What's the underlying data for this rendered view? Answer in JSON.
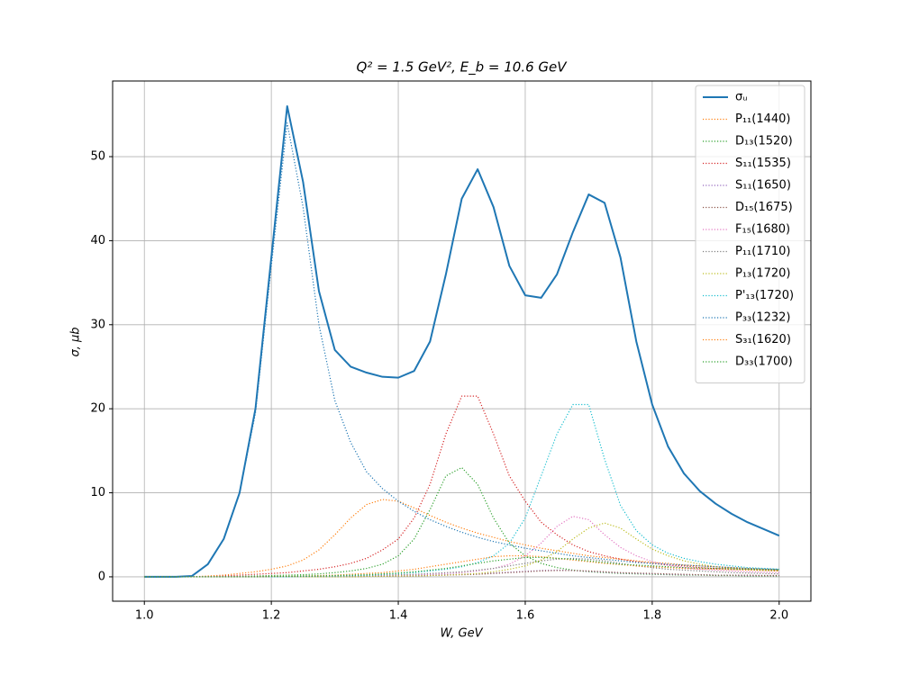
{
  "chart_data": {
    "type": "line",
    "title": "Q² = 1.5 GeV²,  E_b = 10.6 GeV",
    "x_label": "W, GeV",
    "y_label": "σ, μb",
    "xlim": [
      0.95,
      2.05
    ],
    "ylim": [
      -2.9,
      59
    ],
    "xticks": [
      {
        "value": 1.0,
        "label": "1.0"
      },
      {
        "value": 1.2,
        "label": "1.2"
      },
      {
        "value": 1.4,
        "label": "1.4"
      },
      {
        "value": 1.6,
        "label": "1.6"
      },
      {
        "value": 1.8,
        "label": "1.8"
      },
      {
        "value": 2.0,
        "label": "2.0"
      }
    ],
    "yticks": [
      0,
      10,
      20,
      30,
      40,
      50
    ],
    "grid": true,
    "legend": "upper right",
    "x": [
      1.0,
      1.025,
      1.05,
      1.075,
      1.1,
      1.125,
      1.15,
      1.175,
      1.2,
      1.225,
      1.25,
      1.275,
      1.3,
      1.325,
      1.35,
      1.375,
      1.4,
      1.425,
      1.45,
      1.475,
      1.5,
      1.525,
      1.55,
      1.575,
      1.6,
      1.625,
      1.65,
      1.675,
      1.7,
      1.725,
      1.75,
      1.775,
      1.8,
      1.825,
      1.85,
      1.875,
      1.9,
      1.925,
      1.95,
      1.975,
      2.0
    ],
    "series": [
      {
        "name": "σᵤ",
        "color": "#1f77b4",
        "style": "solid",
        "values": [
          0,
          0,
          0,
          0.1,
          1.5,
          4.5,
          10,
          20,
          38,
          56,
          47,
          34,
          27,
          25,
          24.3,
          23.8,
          23.7,
          24.5,
          28,
          36,
          45,
          48.5,
          44,
          37,
          33.5,
          33.2,
          36,
          41,
          45.5,
          44.5,
          38,
          28,
          20.5,
          15.5,
          12.3,
          10.2,
          8.7,
          7.5,
          6.5,
          5.7,
          4.9
        ]
      },
      {
        "name": "P₁₁(1440)",
        "color": "#ff7f0e",
        "style": "dotted",
        "values": [
          0,
          0,
          0,
          0,
          0.1,
          0.2,
          0.4,
          0.6,
          0.9,
          1.3,
          2,
          3.2,
          5,
          7,
          8.6,
          9.2,
          9,
          8.2,
          7.3,
          6.5,
          5.8,
          5.2,
          4.7,
          4.2,
          3.8,
          3.4,
          3.1,
          2.8,
          2.5,
          2.3,
          2.1,
          1.9,
          1.7,
          1.6,
          1.4,
          1.3,
          1.2,
          1.1,
          1.0,
          0.9,
          0.85
        ]
      },
      {
        "name": "D₁₃(1520)",
        "color": "#2ca02c",
        "style": "dotted",
        "values": [
          0,
          0,
          0,
          0,
          0,
          0,
          0.05,
          0.1,
          0.15,
          0.2,
          0.25,
          0.35,
          0.5,
          0.7,
          1,
          1.5,
          2.5,
          4.5,
          8,
          12,
          13,
          11,
          7,
          4,
          2.5,
          1.6,
          1.1,
          0.8,
          0.6,
          0.5,
          0.4,
          0.35,
          0.3,
          0.25,
          0.2,
          0.2,
          0.15,
          0.15,
          0.1,
          0.1,
          0.1
        ]
      },
      {
        "name": "S₁₁(1535)",
        "color": "#d62728",
        "style": "dotted",
        "values": [
          0,
          0,
          0,
          0,
          0,
          0.1,
          0.2,
          0.3,
          0.4,
          0.5,
          0.7,
          0.9,
          1.2,
          1.6,
          2.2,
          3.2,
          4.5,
          7,
          11,
          17,
          21.5,
          21.5,
          17,
          12,
          9,
          6.5,
          5,
          3.8,
          3,
          2.5,
          2.1,
          1.8,
          1.6,
          1.4,
          1.3,
          1.1,
          1,
          0.95,
          0.9,
          0.85,
          0.8
        ]
      },
      {
        "name": "S₁₁(1650)",
        "color": "#9467bd",
        "style": "dotted",
        "values": [
          0,
          0,
          0,
          0,
          0,
          0,
          0,
          0,
          0,
          0,
          0.05,
          0.05,
          0.05,
          0.1,
          0.1,
          0.1,
          0.15,
          0.2,
          0.2,
          0.25,
          0.3,
          0.35,
          0.45,
          0.55,
          0.65,
          0.75,
          0.8,
          0.75,
          0.65,
          0.55,
          0.45,
          0.4,
          0.35,
          0.3,
          0.25,
          0.25,
          0.2,
          0.2,
          0.15,
          0.15,
          0.15
        ]
      },
      {
        "name": "D₁₅(1675)",
        "color": "#8c564b",
        "style": "dotted",
        "values": [
          0,
          0,
          0,
          0,
          0,
          0,
          0,
          0,
          0,
          0,
          0,
          0,
          0,
          0,
          0.05,
          0.05,
          0.1,
          0.1,
          0.15,
          0.2,
          0.25,
          0.3,
          0.4,
          0.5,
          0.6,
          0.7,
          0.75,
          0.75,
          0.7,
          0.6,
          0.5,
          0.45,
          0.4,
          0.35,
          0.3,
          0.25,
          0.2,
          0.2,
          0.2,
          0.15,
          0.15
        ]
      },
      {
        "name": "F₁₅(1680)",
        "color": "#e377c2",
        "style": "dotted",
        "values": [
          0,
          0,
          0,
          0,
          0,
          0,
          0,
          0,
          0,
          0,
          0.05,
          0.05,
          0.05,
          0.1,
          0.1,
          0.15,
          0.2,
          0.25,
          0.3,
          0.4,
          0.5,
          0.7,
          1,
          1.5,
          2.5,
          4,
          6,
          7.2,
          6.8,
          5,
          3.5,
          2.5,
          1.8,
          1.4,
          1.1,
          0.9,
          0.8,
          0.7,
          0.6,
          0.55,
          0.5
        ]
      },
      {
        "name": "P₁₁(1710)",
        "color": "#7f7f7f",
        "style": "dotted",
        "values": [
          0,
          0,
          0,
          0,
          0,
          0,
          0,
          0,
          0,
          0,
          0.05,
          0.05,
          0.1,
          0.1,
          0.15,
          0.2,
          0.25,
          0.3,
          0.4,
          0.5,
          0.6,
          0.8,
          1,
          1.3,
          1.6,
          1.9,
          2.1,
          2.2,
          2.1,
          1.9,
          1.6,
          1.3,
          1.1,
          0.9,
          0.8,
          0.7,
          0.6,
          0.5,
          0.45,
          0.4,
          0.35
        ]
      },
      {
        "name": "P₁₃(1720)",
        "color": "#bcbd22",
        "style": "dotted",
        "values": [
          0,
          0,
          0,
          0,
          0,
          0,
          0,
          0,
          0,
          0,
          0,
          0,
          0,
          0,
          0.05,
          0.05,
          0.1,
          0.1,
          0.15,
          0.2,
          0.3,
          0.4,
          0.6,
          0.9,
          1.3,
          2,
          3,
          4.5,
          5.8,
          6.4,
          5.8,
          4.5,
          3.3,
          2.5,
          1.9,
          1.5,
          1.2,
          1,
          0.9,
          0.8,
          0.7
        ]
      },
      {
        "name": "P'₁₃(1720)",
        "color": "#17becf",
        "style": "dotted",
        "values": [
          0,
          0,
          0,
          0,
          0,
          0,
          0,
          0,
          0,
          0,
          0.05,
          0.1,
          0.1,
          0.15,
          0.2,
          0.3,
          0.4,
          0.5,
          0.7,
          0.9,
          1.2,
          1.7,
          2.5,
          4,
          7,
          12,
          17,
          20.5,
          20.5,
          14,
          8.5,
          5.5,
          3.8,
          2.8,
          2.2,
          1.8,
          1.5,
          1.3,
          1.1,
          1,
          0.9
        ]
      },
      {
        "name": "P₃₃(1232)",
        "color": "#1f77b4",
        "style": "dotted",
        "values": [
          0,
          0,
          0,
          0.1,
          1.5,
          4.5,
          10,
          19.5,
          37,
          54,
          44,
          30,
          21,
          16,
          12.5,
          10.5,
          9,
          7.8,
          6.8,
          6,
          5.3,
          4.7,
          4.2,
          3.8,
          3.4,
          3.1,
          2.8,
          2.5,
          2.3,
          2.1,
          1.9,
          1.7,
          1.6,
          1.5,
          1.4,
          1.3,
          1.2,
          1.1,
          1.0,
          0.95,
          0.9
        ]
      },
      {
        "name": "S₃₁(1620)",
        "color": "#ff7f0e",
        "style": "dotted",
        "values": [
          0,
          0,
          0,
          0,
          0,
          0,
          0,
          0,
          0.05,
          0.05,
          0.1,
          0.15,
          0.2,
          0.3,
          0.4,
          0.5,
          0.7,
          0.9,
          1.2,
          1.5,
          1.8,
          2.1,
          2.4,
          2.5,
          2.5,
          2.4,
          2.2,
          2,
          1.8,
          1.6,
          1.45,
          1.3,
          1.2,
          1.1,
          1,
          0.95,
          0.9,
          0.85,
          0.8,
          0.75,
          0.7
        ]
      },
      {
        "name": "D₃₃(1700)",
        "color": "#2ca02c",
        "style": "dotted",
        "values": [
          0,
          0,
          0,
          0,
          0,
          0,
          0,
          0,
          0.05,
          0.05,
          0.1,
          0.1,
          0.15,
          0.2,
          0.25,
          0.35,
          0.45,
          0.6,
          0.8,
          1,
          1.3,
          1.6,
          1.9,
          2.1,
          2.3,
          2.3,
          2.2,
          2.1,
          1.9,
          1.7,
          1.5,
          1.4,
          1.3,
          1.2,
          1.1,
          1.05,
          1,
          0.95,
          0.9,
          0.85,
          0.8
        ]
      }
    ]
  }
}
